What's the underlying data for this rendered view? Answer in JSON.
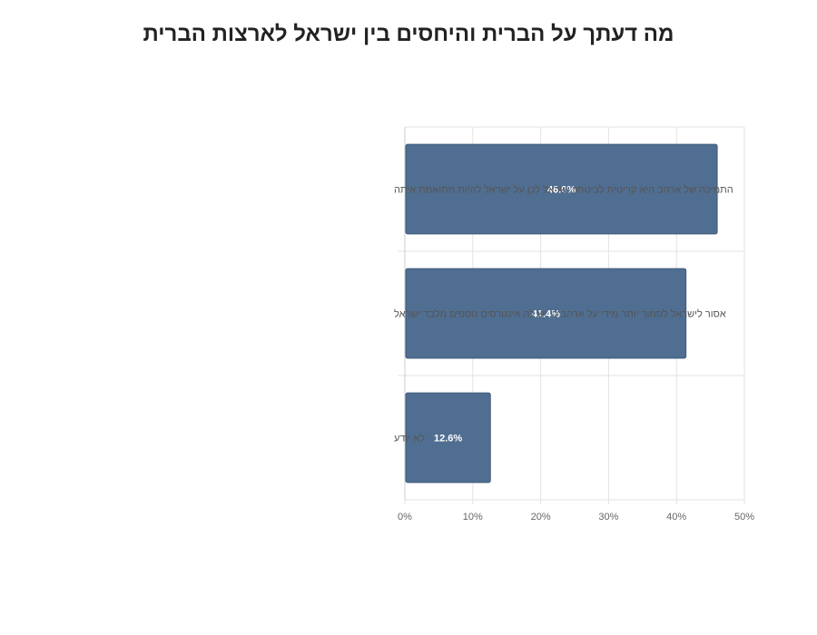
{
  "chart_data": {
    "type": "bar",
    "orientation": "horizontal",
    "title": "מה דעתך על הברית והיחסים בין ישראל לארצות הברית",
    "categories": [
      "התמיכה של ארהב היא קריטית לביטחון ישראל לכן על ישראל להיות מתואמת איתה",
      "אסור לישראל לסמוך יותר מידי על ארהב כי יש לה אינטרסים נוספים מלבד ישראל",
      "לא יודע"
    ],
    "values": [
      46.0,
      41.4,
      12.6
    ],
    "data_labels": [
      "46.0%",
      "41.4%",
      "12.6%"
    ],
    "xlim": [
      0,
      50
    ],
    "x_ticks": [
      "0%",
      "10%",
      "20%",
      "30%",
      "40%",
      "50%"
    ],
    "grid": true,
    "legend": "none",
    "bar_color": "#506e91"
  }
}
